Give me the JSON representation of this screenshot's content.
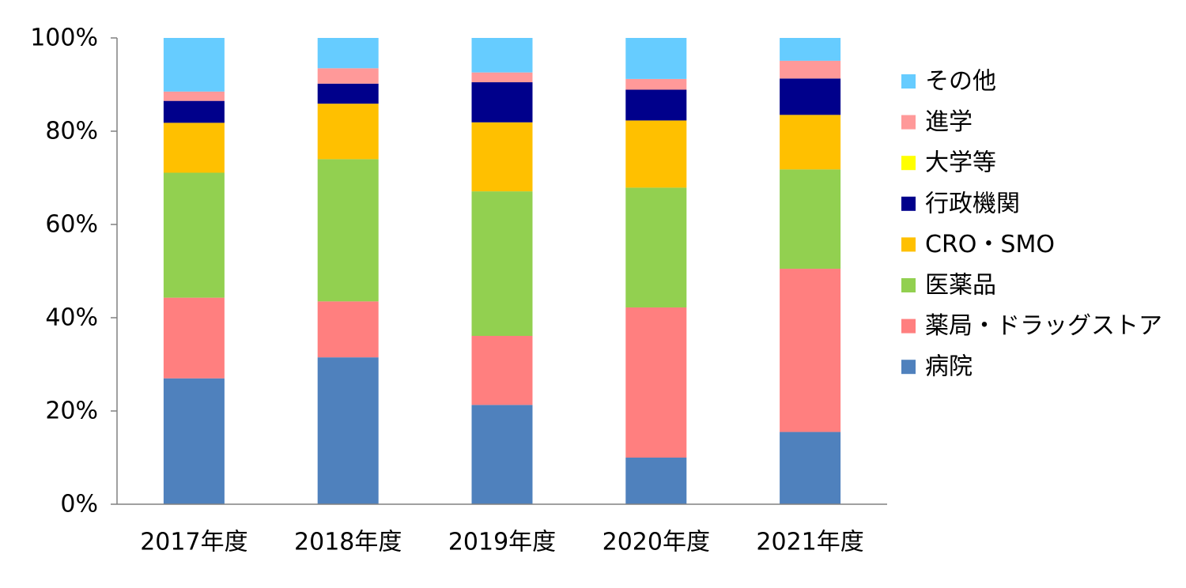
{
  "chart_data": {
    "type": "bar",
    "stacked": true,
    "percent": true,
    "title": "",
    "xlabel": "",
    "ylabel": "",
    "ylim": [
      0,
      100
    ],
    "yticks": [
      "0%",
      "20%",
      "40%",
      "60%",
      "80%",
      "100%"
    ],
    "grid": false,
    "legend_position": "right",
    "categories": [
      "2017年度",
      "2018年度",
      "2019年度",
      "2020年度",
      "2021年度"
    ],
    "series": [
      {
        "name": "病院",
        "color": "#4F81BD",
        "values": [
          27,
          31.5,
          21.3,
          10,
          15.5
        ]
      },
      {
        "name": "薬局・ドラッグストア",
        "color": "#FF7F7F",
        "values": [
          17.3,
          12,
          14.8,
          32.2,
          35
        ]
      },
      {
        "name": "医薬品",
        "color": "#92D050",
        "values": [
          26.8,
          30.5,
          31,
          25.7,
          21.3
        ]
      },
      {
        "name": "CRO・SMO",
        "color": "#FFC000",
        "values": [
          10.7,
          11.9,
          14.8,
          14.4,
          11.7
        ]
      },
      {
        "name": "行政機関",
        "color": "#00008B",
        "values": [
          4.7,
          4.3,
          8.6,
          6.6,
          7.8
        ]
      },
      {
        "name": "大学等",
        "color": "#FFFF00",
        "values": [
          0,
          0,
          0,
          0,
          0
        ]
      },
      {
        "name": "進学",
        "color": "#FF9999",
        "values": [
          2,
          3.3,
          2.1,
          2.3,
          3.8
        ]
      },
      {
        "name": "その他",
        "color": "#66CCFF",
        "values": [
          11.5,
          6.5,
          7.4,
          8.8,
          4.9
        ]
      }
    ]
  }
}
